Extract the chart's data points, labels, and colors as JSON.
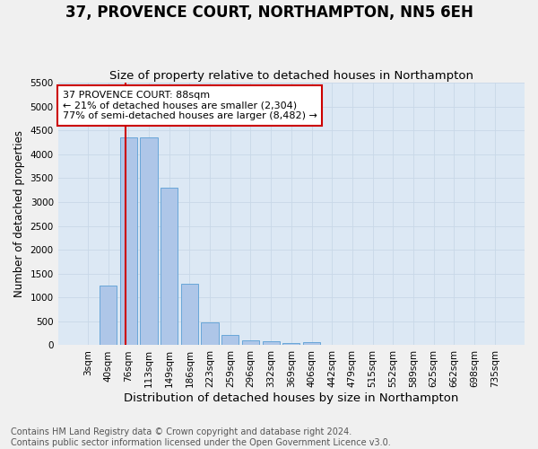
{
  "title": "37, PROVENCE COURT, NORTHAMPTON, NN5 6EH",
  "subtitle": "Size of property relative to detached houses in Northampton",
  "xlabel": "Distribution of detached houses by size in Northampton",
  "ylabel": "Number of detached properties",
  "footer_line1": "Contains HM Land Registry data © Crown copyright and database right 2024.",
  "footer_line2": "Contains public sector information licensed under the Open Government Licence v3.0.",
  "bar_labels": [
    "3sqm",
    "40sqm",
    "76sqm",
    "113sqm",
    "149sqm",
    "186sqm",
    "223sqm",
    "259sqm",
    "296sqm",
    "332sqm",
    "369sqm",
    "406sqm",
    "442sqm",
    "479sqm",
    "515sqm",
    "552sqm",
    "589sqm",
    "625sqm",
    "662sqm",
    "698sqm",
    "735sqm"
  ],
  "bar_values": [
    0,
    1250,
    4350,
    4350,
    3300,
    1280,
    480,
    220,
    100,
    85,
    55,
    60,
    0,
    0,
    0,
    0,
    0,
    0,
    0,
    0,
    0
  ],
  "bar_color": "#aec6e8",
  "bar_edge_color": "#5a9fd4",
  "red_line_color": "#cc0000",
  "annotation_text": "37 PROVENCE COURT: 88sqm\n← 21% of detached houses are smaller (2,304)\n77% of semi-detached houses are larger (8,482) →",
  "annotation_box_facecolor": "#ffffff",
  "annotation_box_edgecolor": "#cc0000",
  "ylim": [
    0,
    5500
  ],
  "yticks": [
    0,
    500,
    1000,
    1500,
    2000,
    2500,
    3000,
    3500,
    4000,
    4500,
    5000,
    5500
  ],
  "grid_color": "#c8d8e8",
  "plot_bg_color": "#dce8f4",
  "fig_bg_color": "#f0f0f0",
  "title_fontsize": 12,
  "subtitle_fontsize": 9.5,
  "xlabel_fontsize": 9.5,
  "ylabel_fontsize": 8.5,
  "tick_fontsize": 7.5,
  "annotation_fontsize": 8,
  "footer_fontsize": 7
}
